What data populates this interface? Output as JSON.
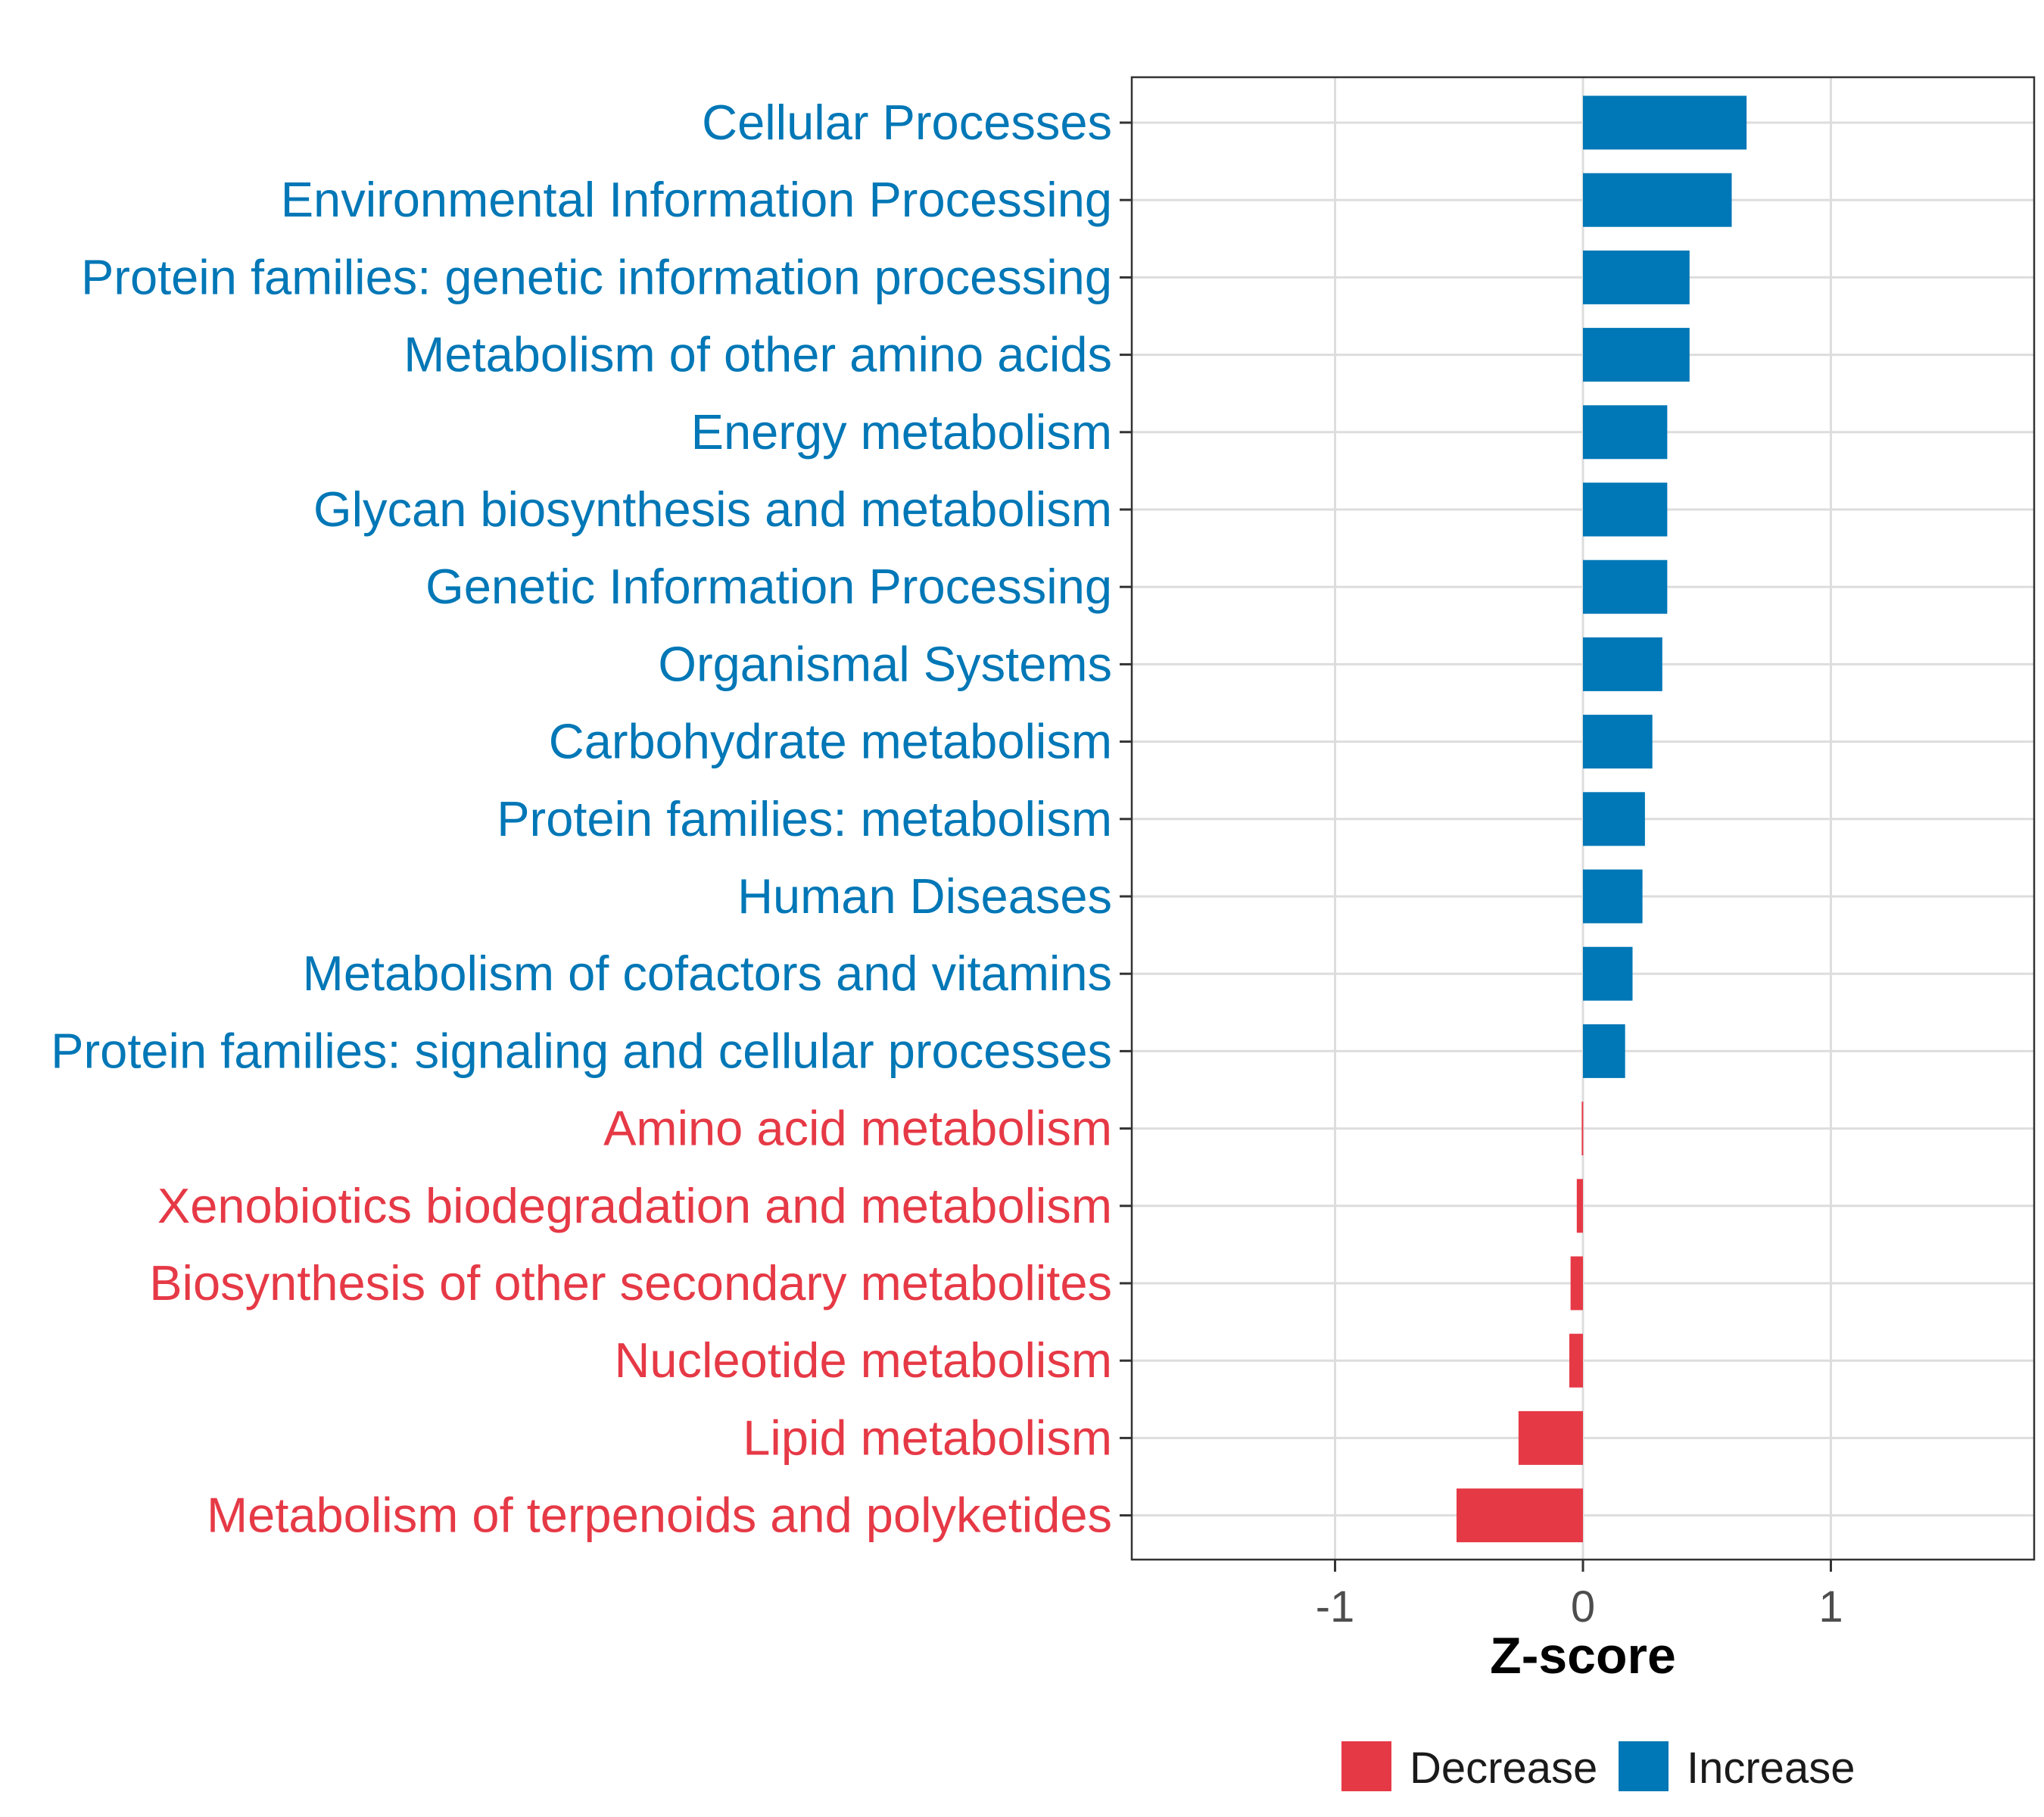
{
  "chart_data": {
    "type": "bar",
    "orientation": "horizontal",
    "xlabel": "Z-score",
    "xlim": [
      -1.82,
      1.82
    ],
    "xticks": [
      -1,
      0,
      1
    ],
    "xtick_labels": [
      "-1",
      "0",
      "1"
    ],
    "grid": true,
    "categories": [
      "Cellular Processes",
      "Environmental Information Processing",
      "Protein families: genetic information processing",
      "Metabolism of other amino acids",
      "Energy metabolism",
      "Glycan biosynthesis and metabolism",
      "Genetic Information Processing",
      "Organismal Systems",
      "Carbohydrate metabolism",
      "Protein families: metabolism",
      "Human Diseases",
      "Metabolism of cofactors and vitamins",
      "Protein families: signaling and cellular processes",
      "Amino acid metabolism",
      "Xenobiotics biodegradation and metabolism",
      "Biosynthesis of other secondary metabolites",
      "Nucleotide metabolism",
      "Lipid metabolism",
      "Metabolism of terpenoids and polyketides"
    ],
    "values": [
      0.66,
      0.6,
      0.43,
      0.43,
      0.34,
      0.34,
      0.34,
      0.32,
      0.28,
      0.25,
      0.24,
      0.2,
      0.17,
      -0.005,
      -0.025,
      -0.05,
      -0.055,
      -0.26,
      -0.51
    ],
    "groups": [
      "Increase",
      "Increase",
      "Increase",
      "Increase",
      "Increase",
      "Increase",
      "Increase",
      "Increase",
      "Increase",
      "Increase",
      "Increase",
      "Increase",
      "Increase",
      "Decrease",
      "Decrease",
      "Decrease",
      "Decrease",
      "Decrease",
      "Decrease"
    ],
    "colors": {
      "Decrease": "#E63946",
      "Increase": "#0077B6"
    },
    "legend": {
      "position": "bottom",
      "entries": [
        {
          "label": "Decrease",
          "color": "#E63946"
        },
        {
          "label": "Increase",
          "color": "#0077B6"
        }
      ]
    }
  }
}
